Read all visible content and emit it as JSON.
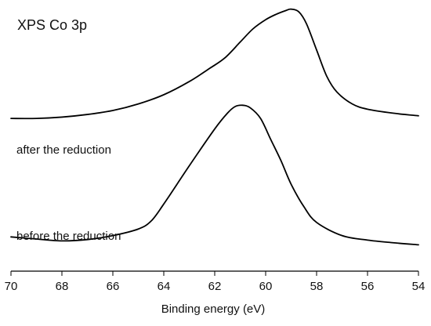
{
  "chart_data": {
    "type": "line",
    "title": "XPS Co 3p",
    "xlabel": "Binding energy (eV)",
    "ylabel": "",
    "xlim": [
      70,
      54
    ],
    "x_reversed": true,
    "x_ticks": [
      70,
      68,
      66,
      64,
      62,
      60,
      58,
      56,
      54
    ],
    "y_axis_shown": false,
    "y_units": "arbitrary (stacked intensity)",
    "ylim": [
      0,
      1
    ],
    "grid": false,
    "series": [
      {
        "name": "after the reduction",
        "x": [
          70,
          69,
          68,
          67,
          66,
          65,
          64,
          63,
          62.2,
          61.6,
          61.0,
          60.5,
          60.0,
          59.6,
          59.2,
          59.0,
          58.7,
          58.4,
          58.0,
          57.6,
          57.2,
          56.6,
          56.0,
          55.0,
          54.0
        ],
        "y": [
          0.58,
          0.58,
          0.585,
          0.595,
          0.61,
          0.635,
          0.67,
          0.72,
          0.77,
          0.81,
          0.87,
          0.92,
          0.955,
          0.975,
          0.99,
          0.995,
          0.985,
          0.94,
          0.84,
          0.74,
          0.68,
          0.635,
          0.615,
          0.6,
          0.59
        ]
      },
      {
        "name": "before the reduction",
        "x": [
          70,
          69,
          68,
          67,
          66,
          65,
          64.5,
          64,
          63,
          62,
          61.5,
          61.2,
          60.9,
          60.6,
          60.2,
          59.8,
          59.4,
          59.0,
          58.5,
          58.0,
          57.0,
          56.0,
          55.0,
          54.0
        ],
        "y": [
          0.13,
          0.122,
          0.115,
          0.12,
          0.135,
          0.16,
          0.19,
          0.255,
          0.4,
          0.54,
          0.6,
          0.625,
          0.63,
          0.62,
          0.58,
          0.5,
          0.42,
          0.33,
          0.245,
          0.185,
          0.135,
          0.118,
          0.108,
          0.1
        ]
      }
    ]
  }
}
